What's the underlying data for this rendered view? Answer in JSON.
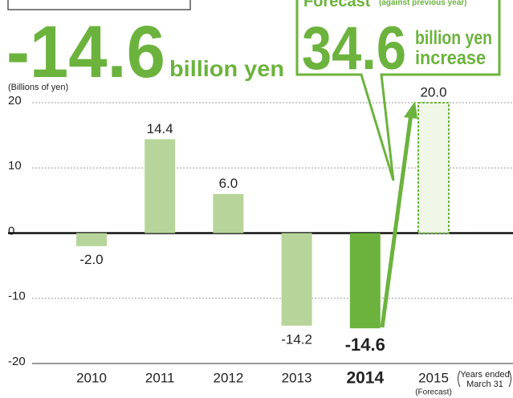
{
  "chart_data": {
    "type": "bar",
    "y_axis_label": "(Billions of yen)",
    "categories": [
      "2010",
      "2011",
      "2012",
      "2013",
      "2014",
      "2015"
    ],
    "x_sublabels": [
      null,
      null,
      null,
      null,
      null,
      "(Forecast)"
    ],
    "x_note": [
      "Years ended",
      "March 31"
    ],
    "values": [
      -2.0,
      14.4,
      6.0,
      -14.2,
      -14.6,
      20.0
    ],
    "value_labels": [
      "-2.0",
      "14.4",
      "6.0",
      "-14.2",
      "-14.6",
      "20.0"
    ],
    "colors": [
      "#b7d59a",
      "#b7d59a",
      "#b7d59a",
      "#b7d59a",
      "#6cb33e",
      "#f0f6e8"
    ],
    "bar_styles": [
      "solid",
      "solid",
      "solid",
      "solid",
      "highlight",
      "dashed"
    ],
    "ylim": [
      -20,
      20
    ],
    "yticks": [
      20,
      10,
      0,
      -10,
      -20
    ],
    "grid": true,
    "annotations": {
      "headline_value": "-14.6",
      "headline_unit": "billion yen",
      "forecast_title": "Forecast",
      "forecast_note": "(against previous year)",
      "forecast_value": "34.6",
      "forecast_unit_1": "billion yen",
      "forecast_unit_2": "increase"
    }
  }
}
